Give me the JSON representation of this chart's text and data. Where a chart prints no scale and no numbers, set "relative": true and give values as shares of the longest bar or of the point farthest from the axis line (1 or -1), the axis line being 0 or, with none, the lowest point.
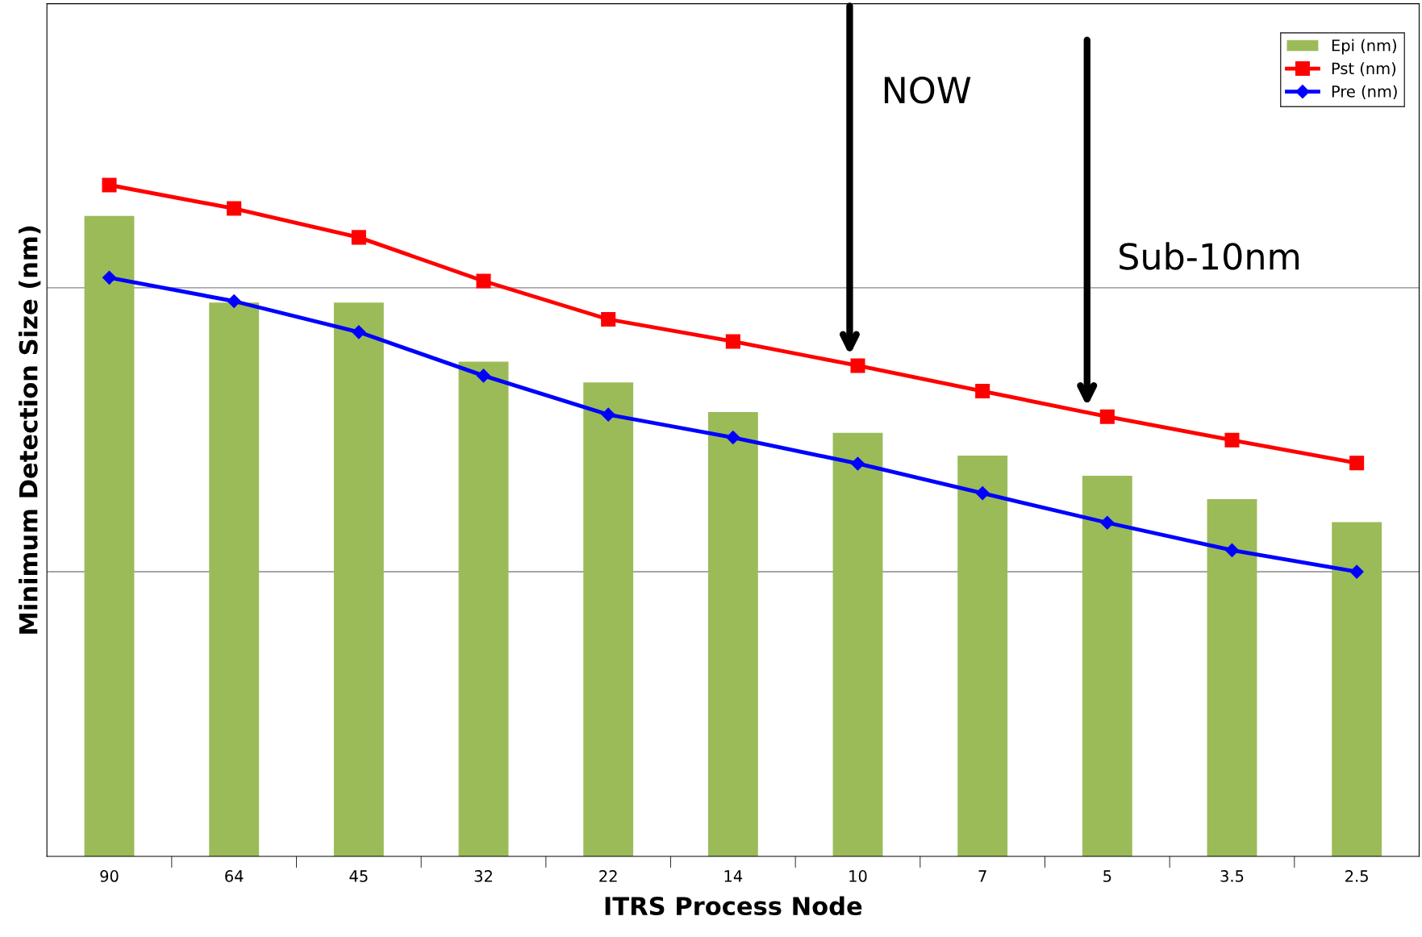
{
  "chart_data": {
    "type": "bar",
    "relative": true,
    "xlabel": "ITRS Process Node",
    "ylabel": "Minimum Detection Size (nm)",
    "categories": [
      "90",
      "64",
      "45",
      "32",
      "22",
      "14",
      "10",
      "7",
      "5",
      "3.5",
      "2.5"
    ],
    "series": [
      {
        "name": "Epi (nm)",
        "color": "#9bbb59",
        "values": [
          0.954,
          0.825,
          0.825,
          0.737,
          0.706,
          0.662,
          0.631,
          0.597,
          0.567,
          0.532,
          0.498
        ]
      },
      {
        "name": "Pst (nm)",
        "type": "line",
        "color": "#ff0000",
        "marker": "square",
        "values": [
          1.0,
          0.965,
          0.922,
          0.857,
          0.8,
          0.767,
          0.731,
          0.693,
          0.655,
          0.62,
          0.586
        ]
      },
      {
        "name": "Pre (nm)",
        "type": "line",
        "color": "#0000ff",
        "marker": "diamond",
        "values": [
          0.862,
          0.827,
          0.781,
          0.716,
          0.658,
          0.624,
          0.585,
          0.541,
          0.497,
          0.456,
          0.424
        ]
      }
    ],
    "annotations": [
      "NOW",
      "Sub-10nm"
    ],
    "ref_lines": [
      {
        "axis": "y",
        "value": 0.424,
        "color": "#888888"
      },
      {
        "axis": "y",
        "value": 0.847,
        "color": "#888888"
      }
    ],
    "legend": "top right",
    "line_style": "solid"
  }
}
